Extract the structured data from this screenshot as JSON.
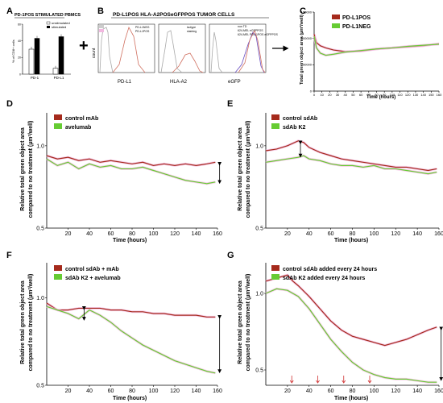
{
  "panels": {
    "A": {
      "letter": "A",
      "title": "PD-1POS STIMULATED PBMCS",
      "ylabel": "% of CD8+ cells",
      "categories": [
        "PD-1",
        "PD-L1"
      ],
      "legend": [
        "unstimulated",
        "stimulated"
      ]
    },
    "B": {
      "letter": "B",
      "title": "PD-L1POS HLA-A2POSeGFPPOS TUMOR CELLS",
      "count_label": "count",
      "legends": [
        [
          "PD-L1NEG",
          "PD-L1POS"
        ],
        [
          "isotype",
          "staining"
        ],
        [
          "non TD",
          "624-MEL eGFPPOS",
          "624-MEL PD-L1POS eGFPPOS"
        ]
      ],
      "xlabels": [
        "PD-L1",
        "HLA-A2",
        "eGFP"
      ]
    },
    "C": {
      "letter": "C",
      "ylabel": "Total green object area (µm²/well)",
      "xlabel": "Time (hours)",
      "legend": [
        "PD-L1POS",
        "PD-L1NEG"
      ]
    },
    "D": {
      "letter": "D",
      "ylabel": "Relative total green object area compared to no treatment (µm²/well)",
      "xlabel": "Time (hours)",
      "legend": [
        "control mAb",
        "avelumab"
      ]
    },
    "E": {
      "letter": "E",
      "ylabel": "Relative total green object area compared to no treatment (µm²/well)",
      "xlabel": "Time (hours)",
      "legend": [
        "control sdAb",
        "sdAb K2"
      ]
    },
    "F": {
      "letter": "F",
      "ylabel": "Relative total green object area compared to no treatment (µm²/well)",
      "xlabel": "Time (hours)",
      "legend": [
        "control sdAb + mAb",
        "sdAb K2 + avelumab"
      ]
    },
    "G": {
      "letter": "G",
      "ylabel": "Relative total green object area compared to no treatment (µm²/well)",
      "xlabel": "Time (hours)",
      "legend": [
        "control sdAb added every 24 hours",
        "sdAb K2 added every 24 hours"
      ]
    }
  },
  "colors": {
    "red": "#a52a1c",
    "green": "#66cc33",
    "pink": "#f2b8e0",
    "black": "#000000"
  },
  "chart_data": [
    {
      "id": "A",
      "type": "bar",
      "categories": [
        "PD-1",
        "PD-L1"
      ],
      "series": [
        {
          "name": "unstimulated",
          "values": [
            30,
            7
          ]
        },
        {
          "name": "stimulated",
          "values": [
            43,
            45
          ]
        }
      ],
      "ylim": [
        0,
        60
      ],
      "yticks": [
        0,
        20,
        40,
        60
      ]
    },
    {
      "id": "C",
      "type": "line",
      "xlim": [
        0,
        160
      ],
      "ylim": [
        0,
        150000
      ],
      "yticks": [
        0,
        50000,
        100000,
        150000
      ],
      "xticks": [
        0,
        10,
        20,
        30,
        40,
        50,
        60,
        70,
        80,
        90,
        100,
        110,
        120,
        130,
        140,
        150,
        160
      ],
      "series": [
        {
          "name": "PD-L1POS",
          "x": [
            0,
            3,
            8,
            15,
            25,
            40,
            60,
            80,
            100,
            120,
            140,
            160
          ],
          "y": [
            108000,
            92000,
            86000,
            82000,
            78000,
            75000,
            76000,
            80000,
            82000,
            84000,
            86000,
            90000
          ]
        },
        {
          "name": "PD-L1NEG",
          "x": [
            0,
            3,
            8,
            15,
            25,
            40,
            60,
            80,
            100,
            120,
            140,
            160
          ],
          "y": [
            104000,
            82000,
            72000,
            68000,
            70000,
            74000,
            77000,
            80000,
            82000,
            85000,
            87000,
            89000
          ]
        }
      ]
    },
    {
      "id": "D",
      "type": "line",
      "xlim": [
        0,
        160
      ],
      "ylim": [
        0.5,
        1.2
      ],
      "yticks": [
        0.5,
        1.0
      ],
      "xticks": [
        20,
        40,
        60,
        80,
        100,
        120,
        140,
        160
      ],
      "series": [
        {
          "name": "control mAb",
          "x": [
            0,
            10,
            20,
            30,
            40,
            50,
            60,
            70,
            80,
            90,
            100,
            110,
            120,
            130,
            140,
            150,
            158
          ],
          "y": [
            0.94,
            0.92,
            0.93,
            0.91,
            0.92,
            0.9,
            0.91,
            0.9,
            0.89,
            0.9,
            0.88,
            0.89,
            0.88,
            0.89,
            0.88,
            0.89,
            0.9
          ]
        },
        {
          "name": "avelumab",
          "x": [
            0,
            10,
            20,
            30,
            40,
            50,
            60,
            70,
            80,
            90,
            100,
            110,
            120,
            130,
            140,
            150,
            158
          ],
          "y": [
            0.92,
            0.88,
            0.9,
            0.86,
            0.89,
            0.87,
            0.88,
            0.86,
            0.86,
            0.87,
            0.85,
            0.83,
            0.81,
            0.79,
            0.78,
            0.77,
            0.78
          ]
        }
      ]
    },
    {
      "id": "E",
      "type": "line",
      "xlim": [
        0,
        160
      ],
      "ylim": [
        0.5,
        1.2
      ],
      "yticks": [
        0.5,
        1.0
      ],
      "xticks": [
        20,
        40,
        60,
        80,
        100,
        120,
        140,
        160
      ],
      "series": [
        {
          "name": "control sdAb",
          "x": [
            0,
            10,
            20,
            30,
            35,
            40,
            50,
            60,
            70,
            80,
            90,
            100,
            110,
            120,
            130,
            140,
            150,
            158
          ],
          "y": [
            0.97,
            0.98,
            1.0,
            1.03,
            1.02,
            0.99,
            0.96,
            0.94,
            0.92,
            0.91,
            0.9,
            0.89,
            0.88,
            0.87,
            0.87,
            0.86,
            0.85,
            0.86
          ]
        },
        {
          "name": "sdAb K2",
          "x": [
            0,
            10,
            20,
            30,
            35,
            40,
            50,
            60,
            70,
            80,
            90,
            100,
            110,
            120,
            130,
            140,
            150,
            158
          ],
          "y": [
            0.9,
            0.91,
            0.92,
            0.93,
            0.94,
            0.92,
            0.91,
            0.89,
            0.88,
            0.88,
            0.87,
            0.88,
            0.86,
            0.86,
            0.85,
            0.84,
            0.83,
            0.84
          ]
        }
      ]
    },
    {
      "id": "F",
      "type": "line",
      "xlim": [
        0,
        160
      ],
      "ylim": [
        0.5,
        1.2
      ],
      "yticks": [
        0.5,
        1.0
      ],
      "xticks": [
        20,
        40,
        60,
        80,
        100,
        120,
        140,
        160
      ],
      "series": [
        {
          "name": "control sdAb + mAb",
          "x": [
            0,
            10,
            20,
            30,
            40,
            50,
            60,
            70,
            80,
            90,
            100,
            110,
            120,
            130,
            140,
            150,
            158
          ],
          "y": [
            0.97,
            0.93,
            0.93,
            0.94,
            0.94,
            0.94,
            0.93,
            0.93,
            0.92,
            0.92,
            0.91,
            0.91,
            0.9,
            0.9,
            0.9,
            0.89,
            0.89
          ]
        },
        {
          "name": "sdAb K2 + avelumab",
          "x": [
            0,
            10,
            20,
            30,
            40,
            50,
            60,
            70,
            80,
            90,
            100,
            110,
            120,
            130,
            140,
            150,
            158
          ],
          "y": [
            0.95,
            0.93,
            0.91,
            0.88,
            0.93,
            0.9,
            0.86,
            0.81,
            0.77,
            0.73,
            0.7,
            0.67,
            0.64,
            0.62,
            0.6,
            0.58,
            0.57
          ]
        }
      ]
    },
    {
      "id": "G",
      "type": "line",
      "xlim": [
        0,
        160
      ],
      "ylim": [
        0.4,
        1.2
      ],
      "yticks": [
        0.5,
        1.0
      ],
      "xticks": [
        20,
        40,
        60,
        80,
        100,
        120,
        140,
        160
      ],
      "series": [
        {
          "name": "control sdAb added every 24 hours",
          "x": [
            0,
            10,
            20,
            25,
            30,
            40,
            50,
            60,
            70,
            80,
            90,
            100,
            110,
            120,
            130,
            140,
            150,
            158
          ],
          "y": [
            1.08,
            1.1,
            1.12,
            1.08,
            1.05,
            0.98,
            0.9,
            0.82,
            0.76,
            0.72,
            0.7,
            0.68,
            0.66,
            0.68,
            0.7,
            0.73,
            0.76,
            0.78
          ]
        },
        {
          "name": "sdAb K2 added every 24 hours",
          "x": [
            0,
            10,
            20,
            30,
            40,
            50,
            60,
            70,
            80,
            90,
            100,
            110,
            120,
            130,
            140,
            150,
            158
          ],
          "y": [
            1.0,
            1.03,
            1.02,
            0.98,
            0.9,
            0.8,
            0.7,
            0.62,
            0.55,
            0.5,
            0.47,
            0.45,
            0.44,
            0.44,
            0.43,
            0.42,
            0.42
          ]
        }
      ],
      "arrows_x": [
        24,
        48,
        72,
        96
      ]
    }
  ]
}
